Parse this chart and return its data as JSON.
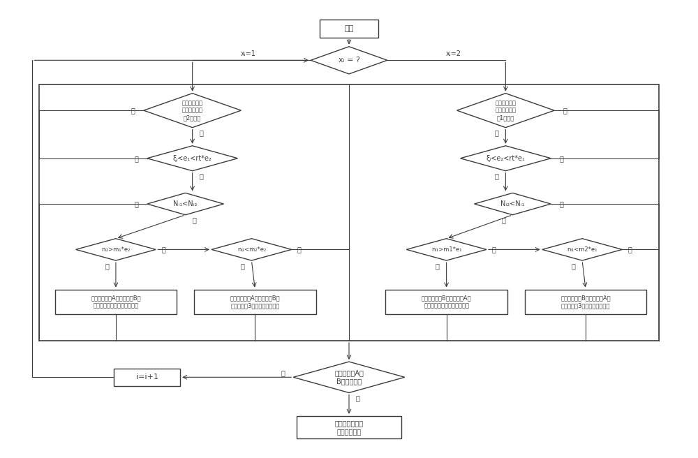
{
  "bg_color": "#ffffff",
  "line_color": "#3c3c3c",
  "text_color": "#3c3c3c",
  "start_text": "开始",
  "d1_text": "xᵢ = ?",
  "xi1_label": "xᵢ=1",
  "xi2_label": "xᵢ=2",
  "dL1_text": "单元邻域内是\n否存在属于部\n件2的单元",
  "dL2_text": "ξᵢ<e₁<rt*e₂",
  "dL3_text": "Nᵢ₁<Nᵢ₂",
  "dL4_text": "nᵢ₂>m₁*e₂",
  "dL5_text": "nᵢ₂<m₂*e₂",
  "rL1_text": "将单元从部件A移动到部件B，\n且在随后的迭代中不进行增幅",
  "rL2_text": "将单元从部件A移动到部件B，\n且在随后的3次迭代中进行增幅",
  "dR1_text": "单元邻域内是\n否存在属于部\n件1的单元",
  "dR2_text": "ξᵢ<e₂<rt*e₁",
  "dR3_text": "Nᵢ₂<Nᵢ₁",
  "dR4_text": "nᵢ₁>m1*e₁",
  "dR5_text": "nᵢ₁<m2*e₁",
  "rR1_text": "将单元从部件B移动到部件A，\n且在随后的迭代中不进行增幅",
  "rR2_text": "将单元从部件B移动到部件A，\n且在随后的3次迭代中进行增幅",
  "dEnd_text": "已遍历部件A、\nB的所有单元",
  "iplus_text": "i=i+1",
  "end_text": "已完成本轮迭代\n的更新，退出",
  "yes": "是",
  "no": "否"
}
